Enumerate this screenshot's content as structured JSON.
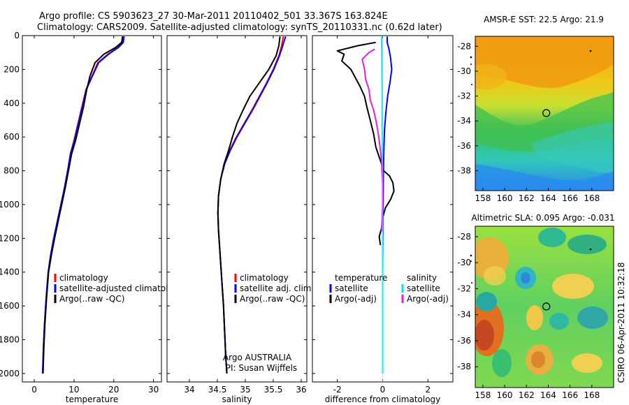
{
  "title_line1": "Argo profile: CS 5903623_27 30-Mar-2011 20110402_501 33.367S 163.824E",
  "title_line2": "Climatology: CARS2009. Satellite-adjusted climatology: synTS_20110331.nc (0.62d later)",
  "side_stamp": "CSIRO 06-Apr-2011 10:32:18",
  "colors": {
    "red": "#ff0000",
    "blue": "#0000ff",
    "black": "#000000",
    "cyan": "#00e5ee",
    "magenta": "#e020e0"
  },
  "chart_data": [
    {
      "type": "line",
      "xlabel": "temperature",
      "xlim": [
        -3,
        32
      ],
      "ylim": [
        0,
        2050
      ],
      "xticks": [
        "0",
        "10",
        "20",
        "30"
      ],
      "xtick_values": [
        0,
        10,
        20,
        30
      ],
      "yticks": [
        "0",
        "200",
        "400",
        "600",
        "800",
        "1000",
        "1200",
        "1400",
        "1600",
        "1800",
        "2000"
      ],
      "ytick_values": [
        0,
        200,
        400,
        600,
        800,
        1000,
        1200,
        1400,
        1600,
        1800,
        2000
      ],
      "legend": [
        {
          "name": "climatology",
          "color": "#ff0000"
        },
        {
          "name": "satellite-adjusted climatology",
          "color": "#0000ff"
        },
        {
          "name": "Argo(..raw -QC)",
          "color": "#000000"
        }
      ],
      "series": [
        {
          "name": "climatology",
          "color": "#ff0000",
          "x": [
            22.4,
            22.2,
            21,
            18.5,
            16,
            14.5,
            13,
            12,
            11,
            10,
            9.1,
            8.4,
            7.6,
            6.7,
            5.8,
            4.9,
            4.1,
            3.5,
            3,
            2.6,
            2.3,
            2.1
          ],
          "y": [
            5,
            40,
            70,
            110,
            160,
            240,
            320,
            420,
            520,
            620,
            700,
            800,
            900,
            1000,
            1100,
            1200,
            1300,
            1400,
            1550,
            1700,
            1850,
            2000
          ]
        },
        {
          "name": "satellite-adjusted climatology",
          "color": "#0000ff",
          "x": [
            22.6,
            22.4,
            21.2,
            18.7,
            16.2,
            14.6,
            13.1,
            12.1,
            11.1,
            10.1,
            9.1,
            8.4,
            7.6,
            6.7,
            5.8,
            4.9,
            4.1,
            3.5,
            3,
            2.6,
            2.3,
            2.1
          ],
          "y": [
            5,
            40,
            70,
            110,
            160,
            240,
            320,
            420,
            520,
            620,
            700,
            800,
            900,
            1000,
            1100,
            1200,
            1300,
            1400,
            1550,
            1700,
            1850,
            2000
          ]
        },
        {
          "name": "Argo(..raw -QC)",
          "color": "#000000",
          "x": [
            22.2,
            22,
            20.5,
            17.5,
            15.3,
            14,
            13.2,
            12.4,
            11.4,
            10.4,
            9.4,
            8.6,
            7.8,
            6.9,
            6,
            5.1,
            4.3,
            3.6,
            3.1,
            2.7,
            2.4,
            2.2
          ],
          "y": [
            5,
            40,
            70,
            110,
            160,
            240,
            320,
            420,
            520,
            620,
            700,
            800,
            900,
            1000,
            1100,
            1200,
            1300,
            1400,
            1550,
            1700,
            1850,
            2000
          ]
        }
      ]
    },
    {
      "type": "line",
      "xlabel": "salinity",
      "xlim": [
        33.6,
        36.1
      ],
      "ylim": [
        0,
        2050
      ],
      "xticks": [
        "34",
        "34.5",
        "35",
        "35.5",
        "36"
      ],
      "xtick_values": [
        34,
        34.5,
        35,
        35.5,
        36
      ],
      "legend": [
        {
          "name": "climatology",
          "color": "#ff0000"
        },
        {
          "name": "satellite adj. clim.",
          "color": "#0000ff"
        },
        {
          "name": "Argo(..raw -QC)",
          "color": "#000000"
        }
      ],
      "annotation": [
        "Argo AUSTRALIA",
        "PI: Susan Wijffels"
      ],
      "series": [
        {
          "name": "climatology",
          "color": "#ff0000",
          "x": [
            35.68,
            35.65,
            35.6,
            35.5,
            35.38,
            35.25,
            35.12,
            34.98,
            34.84,
            34.72,
            34.63,
            34.56,
            34.52,
            34.51,
            34.52,
            34.55,
            34.58,
            34.61,
            34.63,
            34.65,
            34.67
          ],
          "y": [
            5,
            60,
            120,
            200,
            280,
            360,
            440,
            520,
            600,
            680,
            760,
            850,
            950,
            1050,
            1150,
            1300,
            1450,
            1600,
            1750,
            1900,
            2000
          ]
        },
        {
          "name": "satellite adj. clim.",
          "color": "#0000ff",
          "x": [
            35.72,
            35.67,
            35.61,
            35.51,
            35.39,
            35.26,
            35.13,
            34.99,
            34.85,
            34.73,
            34.63,
            34.56,
            34.52,
            34.51,
            34.52,
            34.55,
            34.58,
            34.61,
            34.63,
            34.65,
            34.67
          ],
          "y": [
            5,
            60,
            120,
            200,
            280,
            360,
            440,
            520,
            600,
            680,
            760,
            850,
            950,
            1050,
            1150,
            1300,
            1450,
            1600,
            1750,
            1900,
            2000
          ]
        },
        {
          "name": "Argo(..raw -QC)",
          "color": "#000000",
          "x": [
            35.62,
            35.6,
            35.55,
            35.42,
            35.25,
            35.08,
            34.96,
            34.85,
            34.77,
            34.7,
            34.62,
            34.56,
            34.52,
            34.51,
            34.52,
            34.55,
            34.58,
            34.61,
            34.63,
            34.65,
            34.67
          ],
          "y": [
            5,
            60,
            120,
            200,
            280,
            360,
            440,
            520,
            600,
            680,
            760,
            850,
            950,
            1050,
            1150,
            1300,
            1450,
            1600,
            1750,
            1900,
            2000
          ]
        }
      ]
    },
    {
      "type": "line",
      "xlabel": "difference from climatology",
      "xlim": [
        -3.1,
        3.1
      ],
      "ylim": [
        0,
        2050
      ],
      "xticks": [
        "-2",
        "0",
        "2"
      ],
      "xtick_values": [
        -2,
        0,
        2
      ],
      "legend": [
        {
          "name": "temperature",
          "color": ""
        },
        {
          "name": "satellite",
          "color": "#0000ff"
        },
        {
          "name": "Argo(-adj)",
          "color": "#000000"
        },
        {
          "name": "salinity",
          "color": ""
        },
        {
          "name": "satellite",
          "color": "#00e5ee"
        },
        {
          "name": "Argo(-adj)",
          "color": "#e020e0"
        }
      ],
      "series": [
        {
          "name": "temperature satellite",
          "color": "#0000ff",
          "x": [
            0.2,
            0.2,
            0.28,
            0.35,
            0.4,
            0.32,
            0.22,
            0.14,
            0.08,
            0.05,
            0.03,
            0.02,
            0.01,
            0,
            0,
            0,
            0
          ],
          "y": [
            5,
            40,
            80,
            130,
            200,
            280,
            360,
            460,
            560,
            700,
            850,
            1000,
            1200,
            1400,
            1600,
            1800,
            2000
          ]
        },
        {
          "name": "temperature Argo(-adj)",
          "color": "#000000",
          "x": [
            -0.3,
            -1.1,
            -2,
            -1.7,
            -1.8,
            -1.4,
            -1.2,
            -1,
            -0.8,
            -0.7,
            -0.55,
            -0.4,
            -0.3,
            -0.1,
            0.05,
            0.3,
            0.45,
            0.5,
            0.35,
            0.12,
            0,
            -0.05,
            -0.15,
            -0.1
          ],
          "y": [
            40,
            60,
            90,
            110,
            150,
            200,
            250,
            300,
            360,
            420,
            500,
            580,
            660,
            740,
            800,
            830,
            870,
            920,
            970,
            1020,
            1080,
            1140,
            1190,
            1240
          ]
        },
        {
          "name": "salinity satellite",
          "color": "#00e5ee",
          "x": [
            -0.04,
            -0.04,
            -0.03,
            -0.03,
            -0.02,
            -0.02,
            -0.02,
            -0.01,
            -0.01,
            0,
            0,
            0,
            0,
            0,
            0,
            0
          ],
          "y": [
            5,
            80,
            160,
            240,
            320,
            400,
            520,
            640,
            760,
            880,
            1000,
            1200,
            1400,
            1600,
            1800,
            2000
          ]
        },
        {
          "name": "salinity Argo(-adj)",
          "color": "#e020e0",
          "x": [
            -0.35,
            -0.6,
            -0.9,
            -0.8,
            -0.75,
            -0.6,
            -0.55,
            -0.4,
            -0.3,
            -0.22,
            -0.15,
            -0.1,
            -0.05,
            -0.03,
            0,
            0,
            0,
            -0.02,
            -0.05
          ],
          "y": [
            80,
            100,
            140,
            200,
            260,
            320,
            380,
            440,
            500,
            560,
            620,
            680,
            740,
            800,
            860,
            920,
            1000,
            1080,
            1160
          ]
        }
      ]
    },
    {
      "type": "heatmap",
      "title": "AMSR-E SST: 22.5 Argo: 21.9",
      "xlim": [
        157.3,
        170
      ],
      "ylim": [
        -39.6,
        -27.2
      ],
      "xticks": [
        "158",
        "160",
        "162",
        "164",
        "166",
        "168"
      ],
      "xtick_values": [
        158,
        160,
        162,
        164,
        166,
        168
      ],
      "yticks": [
        "-28",
        "-30",
        "-32",
        "-34",
        "-36",
        "-38"
      ],
      "ytick_values": [
        -28,
        -30,
        -32,
        -34,
        -36,
        -38
      ],
      "float_position": {
        "lon": 163.824,
        "lat": -33.367
      }
    },
    {
      "type": "heatmap",
      "title": "Altimetric SLA: 0.095 Argo: -0.031",
      "xlim": [
        157.3,
        170
      ],
      "ylim": [
        -39.6,
        -27.2
      ],
      "xticks": [
        "158",
        "160",
        "162",
        "164",
        "166",
        "168"
      ],
      "xtick_values": [
        158,
        160,
        162,
        164,
        166,
        168
      ],
      "yticks": [
        "-28",
        "-30",
        "-32",
        "-34",
        "-36",
        "-38"
      ],
      "ytick_values": [
        -28,
        -30,
        -32,
        -34,
        -36,
        -38
      ],
      "float_position": {
        "lon": 163.824,
        "lat": -33.367
      }
    }
  ]
}
